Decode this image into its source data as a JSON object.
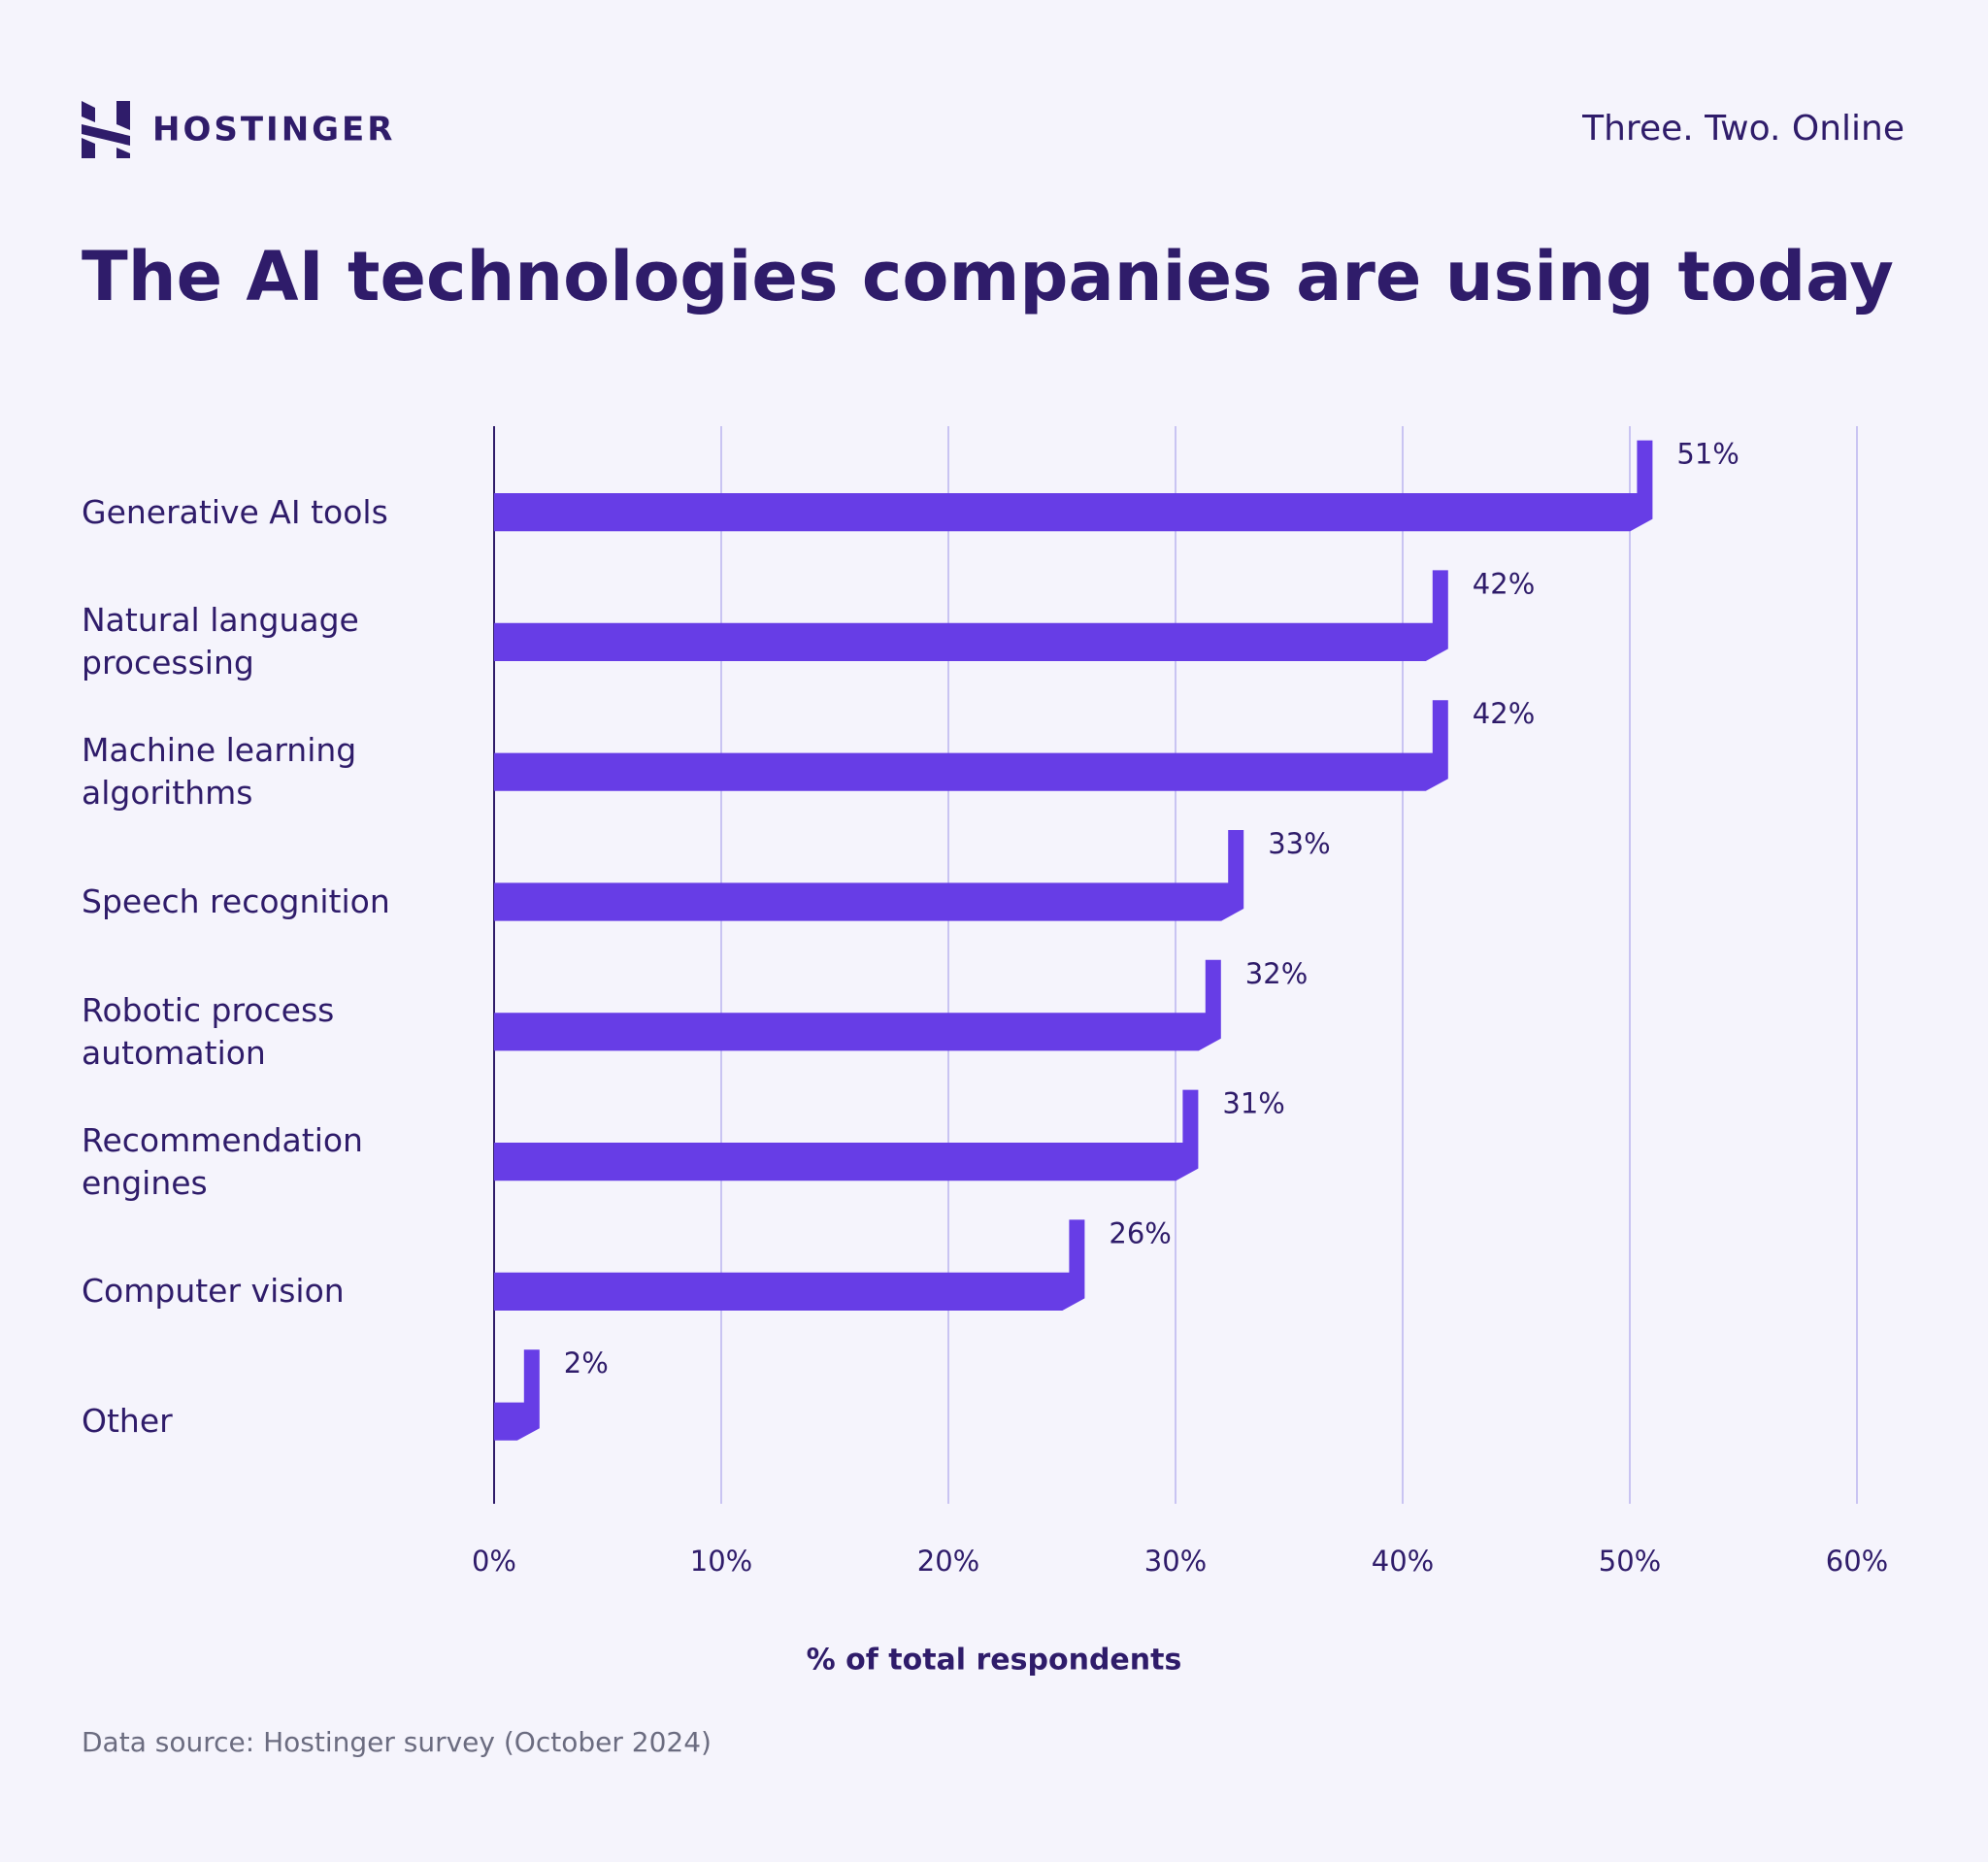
{
  "header": {
    "brand": "HOSTINGER",
    "tagline": "Three. Two. Online"
  },
  "chart_data": {
    "type": "bar",
    "orientation": "horizontal",
    "title": "The AI technologies companies are using today",
    "categories": [
      "Generative AI tools",
      "Natural language processing",
      "Machine learning algorithms",
      "Speech recognition",
      "Robotic process automation",
      "Recommendation engines",
      "Computer vision",
      "Other"
    ],
    "values": [
      51,
      42,
      42,
      33,
      32,
      31,
      26,
      2
    ],
    "value_labels": [
      "51%",
      "42%",
      "42%",
      "33%",
      "32%",
      "31%",
      "26%",
      "2%"
    ],
    "color": "#673de6",
    "xlim": [
      0,
      60
    ],
    "xticks": [
      {
        "value": 0,
        "label": "0%"
      },
      {
        "value": 10,
        "label": "10%"
      },
      {
        "value": 20,
        "label": "20%"
      },
      {
        "value": 30,
        "label": "30%"
      },
      {
        "value": 40,
        "label": "40%"
      },
      {
        "value": 50,
        "label": "50%"
      },
      {
        "value": 60,
        "label": "60%"
      }
    ],
    "x_label": "% of total respondents",
    "grid": true
  },
  "footer": {
    "source": "Data source: Hostinger survey (October 2024)"
  }
}
